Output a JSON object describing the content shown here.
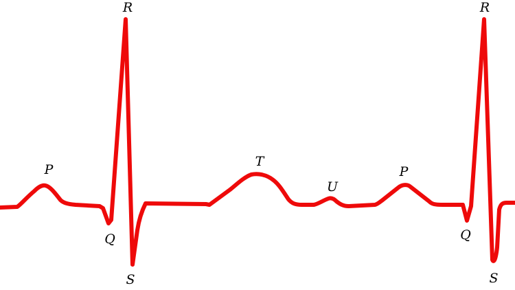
{
  "trace_color": "#ee0a0a",
  "labels": {
    "p1": "P",
    "q1": "Q",
    "r1": "R",
    "s1": "S",
    "t": "T",
    "u": "U",
    "p2": "P",
    "q2": "Q",
    "r2": "R",
    "s2": "S"
  }
}
